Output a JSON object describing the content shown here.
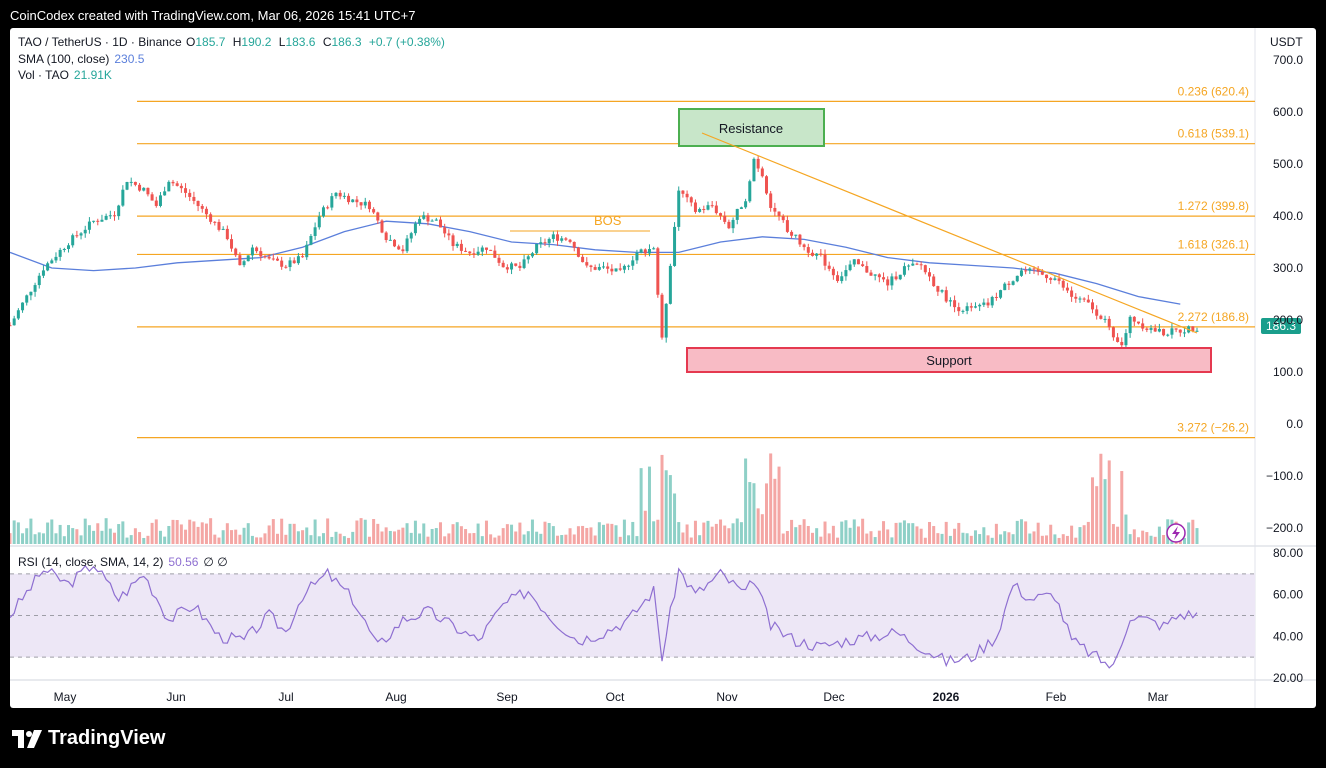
{
  "header": {
    "credit": "CoinCodex created with TradingView.com, Mar 06, 2026 15:41 UTC+7",
    "brand": "TradingView"
  },
  "legend": {
    "symbol": "TAO / TetherUS · 1D · Binance",
    "o_label": "O",
    "o_value": "185.7",
    "h_label": "H",
    "h_value": "190.2",
    "l_label": "L",
    "l_value": "183.6",
    "c_label": "C",
    "c_value": "186.3",
    "change": "+0.7 (+0.38%)",
    "sma_label": "SMA (100, close)",
    "sma_value": "230.5",
    "vol_label": "Vol · TAO",
    "vol_value": "21.91K",
    "rsi_label": "RSI (14, close, SMA, 14, 2)",
    "rsi_value": "50.56",
    "rsi_extra": "∅ ∅"
  },
  "currency": "USDT",
  "colors": {
    "up": "#26a69a",
    "down": "#ef5350",
    "fib": "#f5a623",
    "sma": "#5b7fdb",
    "rsi": "#8e6fd1",
    "resistance": "#4caf50",
    "support": "#e53950",
    "price_tag": "#1a9e8c"
  },
  "annotations": {
    "resistance": "Resistance",
    "support": "Support",
    "bos": "BOS"
  },
  "price_tag": "186.3",
  "chart_data": {
    "type": "candlestick",
    "x_labels": [
      "May",
      "Jun",
      "Jul",
      "Aug",
      "Sep",
      "Oct",
      "Nov",
      "Dec",
      "2026",
      "Feb",
      "Mar"
    ],
    "y_ticks": [
      "700.0",
      "600.0",
      "500.0",
      "400.0",
      "300.0",
      "200.0",
      "100.0",
      "0.0",
      "−100.0",
      "−200.0"
    ],
    "rsi_ticks": [
      "80.00",
      "60.00",
      "40.00",
      "20.00"
    ],
    "fib_levels": [
      {
        "ratio": "0.236",
        "price": 620.4,
        "label": "0.236 (620.4)"
      },
      {
        "ratio": "0.618",
        "price": 539.1,
        "label": "0.618 (539.1)"
      },
      {
        "ratio": "1.272",
        "price": 399.8,
        "label": "1.272 (399.8)"
      },
      {
        "ratio": "1.618",
        "price": 326.1,
        "label": "1.618 (326.1)"
      },
      {
        "ratio": "2.272",
        "price": 186.8,
        "label": "2.272 (186.8)"
      },
      {
        "ratio": "3.272",
        "price": -26.2,
        "label": "3.272 (−26.2)"
      }
    ],
    "price_path": [
      [
        0,
        190
      ],
      [
        8,
        300
      ],
      [
        14,
        350
      ],
      [
        20,
        390
      ],
      [
        25,
        405
      ],
      [
        28,
        470
      ],
      [
        32,
        450
      ],
      [
        35,
        420
      ],
      [
        38,
        470
      ],
      [
        42,
        445
      ],
      [
        45,
        420
      ],
      [
        48,
        395
      ],
      [
        52,
        360
      ],
      [
        55,
        300
      ],
      [
        58,
        340
      ],
      [
        62,
        315
      ],
      [
        66,
        305
      ],
      [
        70,
        320
      ],
      [
        74,
        400
      ],
      [
        78,
        445
      ],
      [
        82,
        430
      ],
      [
        86,
        420
      ],
      [
        90,
        360
      ],
      [
        94,
        335
      ],
      [
        98,
        400
      ],
      [
        102,
        390
      ],
      [
        106,
        345
      ],
      [
        110,
        330
      ],
      [
        114,
        340
      ],
      [
        118,
        305
      ],
      [
        122,
        300
      ],
      [
        126,
        340
      ],
      [
        130,
        360
      ],
      [
        134,
        355
      ],
      [
        138,
        300
      ],
      [
        142,
        300
      ],
      [
        146,
        290
      ],
      [
        150,
        330
      ],
      [
        154,
        340
      ],
      [
        156,
        160
      ],
      [
        158,
        310
      ],
      [
        160,
        450
      ],
      [
        164,
        410
      ],
      [
        168,
        420
      ],
      [
        172,
        380
      ],
      [
        176,
        435
      ],
      [
        178,
        510
      ],
      [
        180,
        480
      ],
      [
        182,
        420
      ],
      [
        186,
        375
      ],
      [
        190,
        340
      ],
      [
        194,
        320
      ],
      [
        198,
        280
      ],
      [
        202,
        310
      ],
      [
        206,
        290
      ],
      [
        210,
        270
      ],
      [
        214,
        300
      ],
      [
        218,
        305
      ],
      [
        222,
        260
      ],
      [
        226,
        225
      ],
      [
        230,
        220
      ],
      [
        234,
        230
      ],
      [
        238,
        265
      ],
      [
        242,
        295
      ],
      [
        246,
        290
      ],
      [
        250,
        280
      ],
      [
        254,
        245
      ],
      [
        258,
        230
      ],
      [
        262,
        200
      ],
      [
        264,
        160
      ],
      [
        266,
        150
      ],
      [
        268,
        205
      ],
      [
        272,
        185
      ],
      [
        276,
        175
      ],
      [
        280,
        180
      ],
      [
        284,
        186.3
      ]
    ],
    "sma_path": [
      [
        0,
        330
      ],
      [
        10,
        300
      ],
      [
        20,
        295
      ],
      [
        30,
        300
      ],
      [
        40,
        310
      ],
      [
        50,
        315
      ],
      [
        60,
        320
      ],
      [
        70,
        340
      ],
      [
        80,
        370
      ],
      [
        90,
        390
      ],
      [
        100,
        385
      ],
      [
        110,
        370
      ],
      [
        120,
        350
      ],
      [
        130,
        345
      ],
      [
        140,
        335
      ],
      [
        150,
        330
      ],
      [
        160,
        330
      ],
      [
        170,
        350
      ],
      [
        180,
        360
      ],
      [
        190,
        355
      ],
      [
        200,
        340
      ],
      [
        210,
        320
      ],
      [
        220,
        310
      ],
      [
        230,
        305
      ],
      [
        240,
        300
      ],
      [
        250,
        290
      ],
      [
        260,
        270
      ],
      [
        270,
        245
      ],
      [
        280,
        230.5
      ]
    ],
    "rsi_path": [
      [
        0,
        50
      ],
      [
        8,
        72
      ],
      [
        14,
        65
      ],
      [
        20,
        75
      ],
      [
        26,
        58
      ],
      [
        32,
        70
      ],
      [
        38,
        48
      ],
      [
        44,
        55
      ],
      [
        50,
        40
      ],
      [
        56,
        38
      ],
      [
        62,
        50
      ],
      [
        66,
        42
      ],
      [
        70,
        60
      ],
      [
        76,
        70
      ],
      [
        82,
        58
      ],
      [
        88,
        35
      ],
      [
        94,
        48
      ],
      [
        100,
        52
      ],
      [
        106,
        45
      ],
      [
        112,
        38
      ],
      [
        118,
        55
      ],
      [
        124,
        62
      ],
      [
        130,
        48
      ],
      [
        136,
        38
      ],
      [
        142,
        42
      ],
      [
        148,
        48
      ],
      [
        154,
        62
      ],
      [
        156,
        30
      ],
      [
        160,
        72
      ],
      [
        164,
        60
      ],
      [
        170,
        70
      ],
      [
        176,
        60
      ],
      [
        178,
        68
      ],
      [
        182,
        45
      ],
      [
        188,
        38
      ],
      [
        194,
        35
      ],
      [
        200,
        38
      ],
      [
        206,
        40
      ],
      [
        212,
        42
      ],
      [
        218,
        35
      ],
      [
        224,
        28
      ],
      [
        230,
        30
      ],
      [
        236,
        40
      ],
      [
        240,
        65
      ],
      [
        244,
        58
      ],
      [
        250,
        60
      ],
      [
        254,
        38
      ],
      [
        260,
        30
      ],
      [
        264,
        25
      ],
      [
        268,
        50
      ],
      [
        272,
        48
      ],
      [
        276,
        45
      ],
      [
        280,
        50.56
      ]
    ],
    "rsi_band": [
      30,
      70
    ],
    "rsi_mid": 50
  }
}
